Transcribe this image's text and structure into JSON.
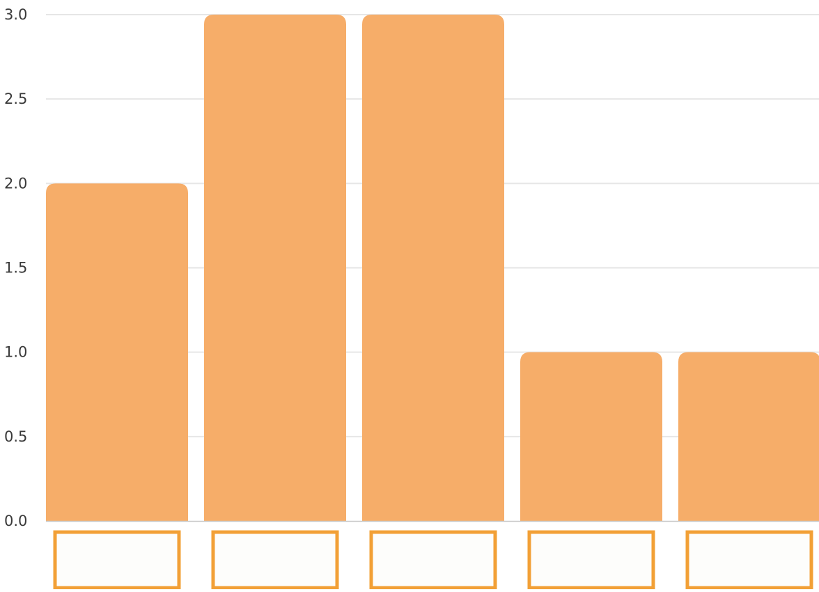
{
  "chart_data": {
    "type": "bar",
    "categories": [
      "",
      "",
      "",
      "",
      ""
    ],
    "values": [
      2,
      3,
      3,
      1,
      1
    ],
    "title": "",
    "xlabel": "",
    "ylabel": "",
    "ylim": [
      0,
      3
    ],
    "yticks": [
      "0.0",
      "0.5",
      "1.0",
      "1.5",
      "2.0",
      "2.5",
      "3.0"
    ],
    "grid": true,
    "legend": "none",
    "category_labels": "blank outlined boxes",
    "colors": {
      "bar": "#f6ad69",
      "category_box_border": "#f2a036",
      "grid": "#e6e6e6",
      "tick_text": "#3a3a3a"
    }
  }
}
